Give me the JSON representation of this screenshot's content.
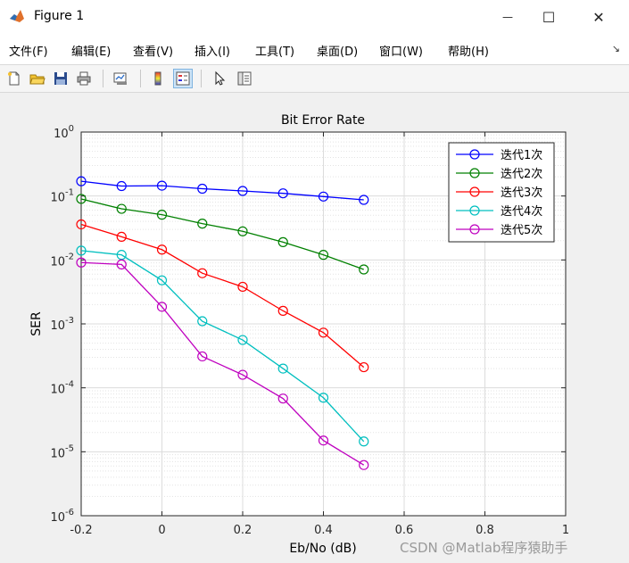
{
  "window": {
    "title": "Figure 1",
    "minimize_glyph": "—",
    "maximize_glyph": "☐",
    "close_glyph": "✕"
  },
  "menu": {
    "items": [
      "文件(F)",
      "编辑(E)",
      "查看(V)",
      "插入(I)",
      "工具(T)",
      "桌面(D)",
      "窗口(W)",
      "帮助(H)"
    ]
  },
  "toolbar": {
    "icons": [
      "new-figure-icon",
      "open-file-icon",
      "save-icon",
      "print-icon",
      "link-plot-icon",
      "colorbar-icon",
      "legend-icon",
      "pointer-icon",
      "property-editor-icon"
    ]
  },
  "colors": {
    "series": [
      "#0000ff",
      "#008000",
      "#ff0000",
      "#00bfbf",
      "#bf00bf"
    ]
  },
  "chart_data": {
    "type": "line",
    "title": "Bit Error Rate",
    "xlabel": "Eb/No (dB)",
    "ylabel": "SER",
    "xlim": [
      -0.2,
      1
    ],
    "ylim": [
      1e-06,
      1
    ],
    "yscale": "log",
    "grid": "on (major and minor)",
    "legend_position": "top-right",
    "xticks": [
      "-0.2",
      "0",
      "0.2",
      "0.4",
      "0.6",
      "0.8",
      "1"
    ],
    "yticks": [
      {
        "base": "10",
        "exp": "0"
      },
      {
        "base": "10",
        "exp": "-1"
      },
      {
        "base": "10",
        "exp": "-2"
      },
      {
        "base": "10",
        "exp": "-3"
      },
      {
        "base": "10",
        "exp": "-4"
      },
      {
        "base": "10",
        "exp": "-5"
      },
      {
        "base": "10",
        "exp": "-6"
      }
    ],
    "x": [
      -0.2,
      -0.1,
      0,
      0.1,
      0.2,
      0.3,
      0.4,
      0.5
    ],
    "series": [
      {
        "name": "迭代1次",
        "values": [
          0.17,
          0.143,
          0.145,
          0.13,
          0.12,
          0.11,
          0.098,
          0.087
        ]
      },
      {
        "name": "迭代2次",
        "values": [
          0.09,
          0.063,
          0.051,
          0.037,
          0.028,
          0.019,
          0.012,
          0.0071
        ]
      },
      {
        "name": "迭代3次",
        "values": [
          0.036,
          0.023,
          0.0145,
          0.0062,
          0.0038,
          0.0016,
          0.00073,
          0.00021
        ]
      },
      {
        "name": "迭代4次",
        "values": [
          0.014,
          0.012,
          0.0048,
          0.0011,
          0.00056,
          0.0002,
          7e-05,
          1.45e-05
        ]
      },
      {
        "name": "迭代5次",
        "values": [
          0.0091,
          0.0085,
          0.00185,
          0.00031,
          0.00016,
          6.8e-05,
          1.5e-05,
          6.2e-06
        ]
      }
    ]
  },
  "watermark": "CSDN @Matlab程序猿助手"
}
